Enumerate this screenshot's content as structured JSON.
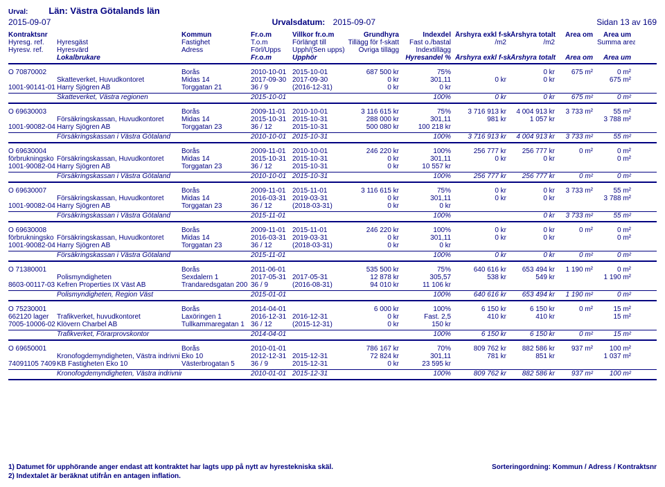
{
  "header": {
    "urval_label": "Urval:",
    "lan": "Län: Västra Götalands län",
    "date_left": "2015-09-07",
    "urvalsdatum_label": "Urvalsdatum:",
    "urvalsdatum_value": "2015-09-07",
    "page": "Sidan 13 av 169"
  },
  "columns": {
    "line1": [
      "Kontraktsnr",
      "",
      "Kommun",
      "Fr.o.m",
      "Villkor fr.o.m",
      "Grundhyra",
      "Indexdel",
      "Årshyra exkl f-skatt",
      "Årshyra totalt",
      "Area om",
      "Area um"
    ],
    "line2": [
      "Hyresg. ref.",
      "Hyresgäst",
      "Fastighet",
      "T.o.m",
      "Förlängt till",
      "Tillägg för f-skatt",
      "Fast o./bastal",
      "/m2",
      "/m2",
      "",
      "Summa area"
    ],
    "line3": [
      "Hyresv. ref.",
      "Hyresvärd",
      "Adress",
      "Förl/Upps",
      "Upph/(Sen upps)",
      "Övriga tillägg",
      "Indextillägg",
      "",
      "",
      "",
      ""
    ],
    "line4": [
      "",
      "Lokalbrukare",
      "",
      "Fr.o.m",
      "Upphör",
      "",
      "Hyresandel %",
      "Årshyra exkl f-skatt",
      "Årshyra totalt",
      "Area om",
      "Area um"
    ]
  },
  "groups": [
    {
      "rows": [
        [
          "O 70870002",
          "",
          "Borås",
          "2010-10-01",
          "2015-10-01",
          "687 500 kr",
          "75%",
          "",
          "0 kr",
          "675 m²",
          "0 m²"
        ],
        [
          "",
          "Skatteverket, Huvudkontoret",
          "Midas 14",
          "2017-09-30",
          "2017-09-30",
          "0 kr",
          "301,11",
          "0 kr",
          "0 kr",
          "",
          "675 m²"
        ],
        [
          "1001-90141-01",
          "Harry Sjögren AB",
          "Torggatan 21",
          "36 / 9",
          "(2016-12-31)",
          "0 kr",
          "0 kr",
          "",
          "",
          "",
          ""
        ]
      ],
      "summary": [
        "",
        "Skatteverket, Västra regionen",
        "",
        "2015-10-01",
        "",
        "",
        "100%",
        "0 kr",
        "0 kr",
        "675 m²",
        "0 m²"
      ]
    },
    {
      "rows": [
        [
          "O 69630003",
          "",
          "Borås",
          "2009-11-01",
          "2010-10-01",
          "3 116 615 kr",
          "75%",
          "3 716 913 kr",
          "4 004 913 kr",
          "3 733 m²",
          "55 m²"
        ],
        [
          "",
          "Försäkringskassan, Huvudkontoret",
          "Midas 14",
          "2015-10-31",
          "2015-10-31",
          "288 000 kr",
          "301,11",
          "981 kr",
          "1 057 kr",
          "",
          "3 788 m²"
        ],
        [
          "1001-90082-04",
          "Harry Sjögren AB",
          "Torggatan 23",
          "36 / 12",
          "2015-10-31",
          "500 080 kr",
          "100 218 kr",
          "",
          "",
          "",
          ""
        ]
      ],
      "summary": [
        "",
        "Försäkringskassan i Västra Götaland",
        "",
        "2010-10-01",
        "2015-10-31",
        "",
        "100%",
        "3 716 913 kr",
        "4 004 913 kr",
        "3 733 m²",
        "55 m²"
      ]
    },
    {
      "rows": [
        [
          "O 69630004",
          "",
          "Borås",
          "2009-11-01",
          "2010-10-01",
          "246 220 kr",
          "100%",
          "256 777 kr",
          "256 777 kr",
          "0 m²",
          "0 m²"
        ],
        [
          "förbrukningsko",
          "Försäkringskassan, Huvudkontoret",
          "Midas 14",
          "2015-10-31",
          "2015-10-31",
          "0 kr",
          "301,11",
          "0 kr",
          "0 kr",
          "",
          "0 m²"
        ],
        [
          "1001-90082-04",
          "Harry Sjögren AB",
          "Torggatan 23",
          "36 / 12",
          "2015-10-31",
          "0 kr",
          "10 557 kr",
          "",
          "",
          "",
          ""
        ]
      ],
      "summary": [
        "",
        "Försäkringskassan i Västra Götaland",
        "",
        "2010-10-01",
        "2015-10-31",
        "",
        "100%",
        "256 777 kr",
        "256 777 kr",
        "0 m²",
        "0 m²"
      ]
    },
    {
      "rows": [
        [
          "O 69630007",
          "",
          "Borås",
          "2009-11-01",
          "2015-11-01",
          "3 116 615 kr",
          "75%",
          "0 kr",
          "0 kr",
          "3 733 m²",
          "55 m²"
        ],
        [
          "",
          "Försäkringskassan, Huvudkontoret",
          "Midas 14",
          "2016-03-31",
          "2019-03-31",
          "0 kr",
          "301,11",
          "0 kr",
          "0 kr",
          "",
          "3 788 m²"
        ],
        [
          "1001-90082-04",
          "Harry Sjögren AB",
          "Torggatan 23",
          "36 / 12",
          "(2018-03-31)",
          "0 kr",
          "0 kr",
          "",
          "",
          "",
          ""
        ]
      ],
      "summary": [
        "",
        "Försäkringskassan i Västra Götaland",
        "",
        "2015-11-01",
        "",
        "",
        "100%",
        "",
        "0 kr",
        "3 733 m²",
        "55 m²"
      ]
    },
    {
      "rows": [
        [
          "O 69630008",
          "",
          "Borås",
          "2009-11-01",
          "2015-11-01",
          "246 220 kr",
          "100%",
          "0 kr",
          "0 kr",
          "0 m²",
          "0 m²"
        ],
        [
          "förbrukningsko",
          "Försäkringskassan, Huvudkontoret",
          "Midas 14",
          "2016-03-31",
          "2019-03-31",
          "0 kr",
          "301,11",
          "0 kr",
          "0 kr",
          "",
          "0 m²"
        ],
        [
          "1001-90082-04",
          "Harry Sjögren AB",
          "Torggatan 23",
          "36 / 12",
          "(2018-03-31)",
          "0 kr",
          "0 kr",
          "",
          "",
          "",
          ""
        ]
      ],
      "summary": [
        "",
        "Försäkringskassan i Västra Götaland",
        "",
        "2015-11-01",
        "",
        "",
        "100%",
        "0 kr",
        "0 kr",
        "0 m²",
        "0 m²"
      ]
    },
    {
      "rows": [
        [
          "O 71380001",
          "",
          "Borås",
          "2011-06-01",
          "",
          "535 500 kr",
          "75%",
          "640 616 kr",
          "653 494 kr",
          "1 190 m²",
          "0 m²"
        ],
        [
          "",
          "Polismyndigheten",
          "Sexdalern 1",
          "2017-05-31",
          "2017-05-31",
          "12 878 kr",
          "305,57",
          "538 kr",
          "549 kr",
          "",
          "1 190 m²"
        ],
        [
          "8603-00117-03",
          "Kefren Properties IX Väst AB",
          "Trandaredsgatan 200",
          "36 / 9",
          "(2016-08-31)",
          "94 010 kr",
          "11 106 kr",
          "",
          "",
          "",
          ""
        ]
      ],
      "summary": [
        "",
        "Polismyndigheten, Region Väst",
        "",
        "2015-01-01",
        "",
        "",
        "100%",
        "640 616 kr",
        "653 494 kr",
        "1 190 m²",
        "0 m²"
      ]
    },
    {
      "rows": [
        [
          "O 75230001",
          "",
          "Borås",
          "2014-04-01",
          "",
          "6 000 kr",
          "100%",
          "6 150 kr",
          "6 150 kr",
          "0 m²",
          "15 m²"
        ],
        [
          "662120  lager",
          "Trafikverket, huvudkontoret",
          "Laxöringen 1",
          "2016-12-31",
          "2016-12-31",
          "0 kr",
          "Fast. 2,5",
          "410 kr",
          "410 kr",
          "",
          "15 m²"
        ],
        [
          "7005-10006-02",
          "Klövern Charbel AB",
          "Tullkammaregatan 1",
          "36 / 12",
          "(2015-12-31)",
          "0 kr",
          "150 kr",
          "",
          "",
          "",
          ""
        ]
      ],
      "summary": [
        "",
        "Trafikverket, Förarprovskontor",
        "",
        "2014-04-01",
        "",
        "",
        "100%",
        "6 150 kr",
        "6 150 kr",
        "0 m²",
        "15 m²"
      ]
    },
    {
      "rows": [
        [
          "O 69650001",
          "",
          "Borås",
          "2010-01-01",
          "",
          "786 167 kr",
          "70%",
          "809 762 kr",
          "882 586 kr",
          "937 m²",
          "100 m²"
        ],
        [
          "",
          "Kronofogdemyndigheten, Västra indrivni",
          "Eko 10",
          "2012-12-31",
          "2015-12-31",
          "72 824 kr",
          "301,11",
          "781 kr",
          "851 kr",
          "",
          "1 037 m²"
        ],
        [
          "74091105 7409",
          "KB Fastigheten Eko 10",
          "Västerbrogatan 5",
          "36 / 9",
          "2015-12-31",
          "0 kr",
          "23 595 kr",
          "",
          "",
          "",
          ""
        ]
      ],
      "summary": [
        "",
        "Kronofogdemyndigheten, Västra indrivningsavdelning",
        "",
        "2010-01-01",
        "2015-12-31",
        "",
        "100%",
        "809 762 kr",
        "882 586 kr",
        "937 m²",
        "100 m²"
      ]
    }
  ],
  "footer": {
    "note1": "1) Datumet för upphörande anger endast att kontraktet har lagts upp på nytt av hyrestekniska skäl.",
    "note2": "2) Indextalet är beräknat utifrån en antagen inflation.",
    "sort": "Sorteringordning: Kommun / Adress / Kontraktsnr"
  },
  "align": [
    "l",
    "l",
    "l",
    "l",
    "l",
    "r",
    "r",
    "r",
    "r",
    "r",
    "r"
  ]
}
